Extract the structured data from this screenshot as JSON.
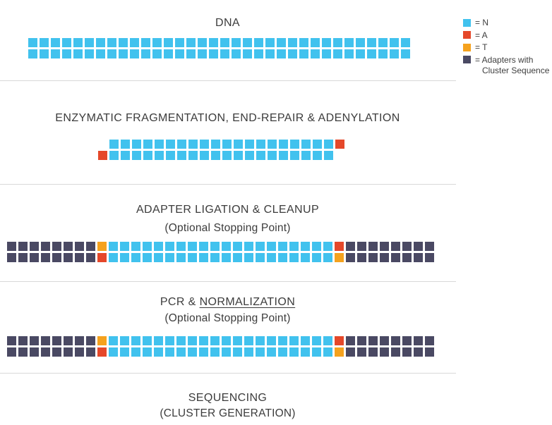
{
  "palette": {
    "N": "#41C2EE",
    "A": "#E5482A",
    "T": "#F5A21E",
    "AD": "#4A4963",
    "GAP": "transparent"
  },
  "legend": {
    "items": [
      {
        "key": "N",
        "label": "= N"
      },
      {
        "key": "A",
        "label": "= A"
      },
      {
        "key": "T",
        "label": "= T"
      },
      {
        "key": "AD",
        "label": "= Adapters with",
        "label2": "Cluster Sequence"
      }
    ]
  },
  "sections": [
    {
      "name": "dna",
      "title": "DNA",
      "rows": [
        [
          [
            "N",
            34
          ]
        ],
        [
          [
            "N",
            34
          ]
        ]
      ]
    },
    {
      "name": "fragmentation",
      "title": "ENZYMATIC FRAGMENTATION, END-REPAIR & ADENYLATION",
      "rows": [
        [
          [
            "GAP",
            1
          ],
          [
            "N",
            20
          ],
          [
            "A",
            1
          ]
        ],
        [
          [
            "A",
            1
          ],
          [
            "N",
            20
          ],
          [
            "GAP",
            1
          ]
        ]
      ]
    },
    {
      "name": "adapter-ligation",
      "title": "ADAPTER LIGATION & CLEANUP",
      "subtitle": "(Optional Stopping Point)",
      "rows": [
        [
          [
            "AD",
            8
          ],
          [
            "T",
            1
          ],
          [
            "N",
            20
          ],
          [
            "A",
            1
          ],
          [
            "AD",
            8
          ]
        ],
        [
          [
            "AD",
            8
          ],
          [
            "A",
            1
          ],
          [
            "N",
            20
          ],
          [
            "T",
            1
          ],
          [
            "AD",
            8
          ]
        ]
      ]
    },
    {
      "name": "pcr-normalization",
      "title_prefix": "PCR & ",
      "title_underlined": "NORMALIZATION",
      "subtitle": "(Optional Stopping Point)",
      "rows": [
        [
          [
            "AD",
            8
          ],
          [
            "T",
            1
          ],
          [
            "N",
            20
          ],
          [
            "A",
            1
          ],
          [
            "AD",
            8
          ]
        ],
        [
          [
            "AD",
            8
          ],
          [
            "A",
            1
          ],
          [
            "N",
            20
          ],
          [
            "T",
            1
          ],
          [
            "AD",
            8
          ]
        ]
      ]
    },
    {
      "name": "sequencing",
      "title": "SEQUENCING",
      "subtitle": "(CLUSTER GENERATION)",
      "rows": []
    }
  ]
}
